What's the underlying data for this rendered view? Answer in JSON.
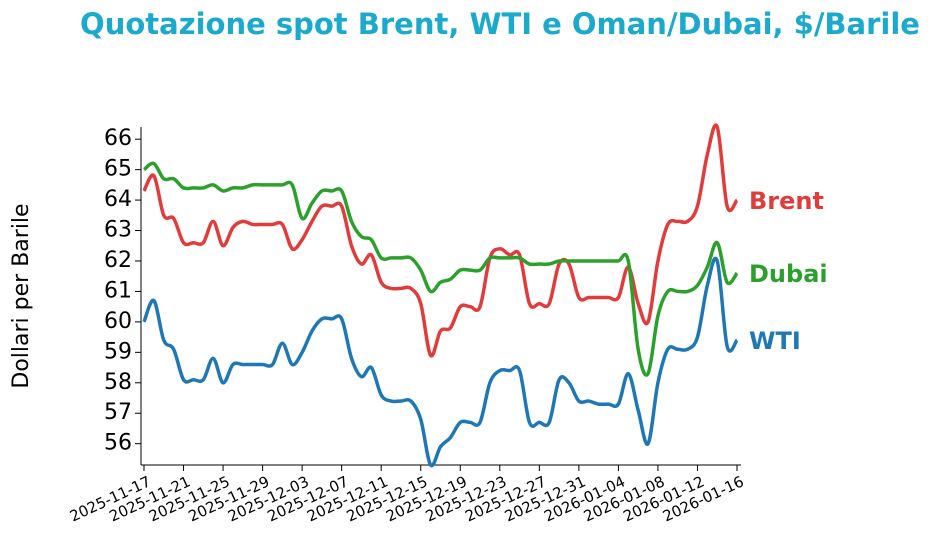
{
  "chart_data": {
    "type": "line",
    "title": "Quotazione spot Brent, WTI e Oman/Dubai, $/Barile",
    "y_label": "Dollari per Barile",
    "title_color": "#1ba9cc",
    "x": [
      "2025-11-17",
      "2025-11-18",
      "2025-11-19",
      "2025-11-20",
      "2025-11-21",
      "2025-11-22",
      "2025-11-23",
      "2025-11-24",
      "2025-11-25",
      "2025-11-26",
      "2025-11-27",
      "2025-11-28",
      "2025-11-29",
      "2025-11-30",
      "2025-12-01",
      "2025-12-02",
      "2025-12-03",
      "2025-12-04",
      "2025-12-05",
      "2025-12-06",
      "2025-12-07",
      "2025-12-08",
      "2025-12-09",
      "2025-12-10",
      "2025-12-11",
      "2025-12-12",
      "2025-12-13",
      "2025-12-14",
      "2025-12-15",
      "2025-12-16",
      "2025-12-17",
      "2025-12-18",
      "2025-12-19",
      "2025-12-20",
      "2025-12-21",
      "2025-12-22",
      "2025-12-23",
      "2025-12-24",
      "2025-12-25",
      "2025-12-26",
      "2025-12-27",
      "2025-12-28",
      "2025-12-29",
      "2025-12-30",
      "2025-12-31",
      "2026-01-01",
      "2026-01-02",
      "2026-01-03",
      "2026-01-04",
      "2026-01-05",
      "2026-01-06",
      "2026-01-07",
      "2026-01-08",
      "2026-01-09",
      "2026-01-10",
      "2026-01-11",
      "2026-01-12",
      "2026-01-13",
      "2026-01-14",
      "2026-01-15",
      "2026-01-16"
    ],
    "series": [
      {
        "name": "Brent",
        "color": "#e03c3c",
        "values": [
          64.3,
          64.8,
          63.5,
          63.4,
          62.6,
          62.6,
          62.6,
          63.3,
          62.5,
          63.1,
          63.3,
          63.2,
          63.2,
          63.2,
          63.2,
          62.4,
          62.7,
          63.3,
          63.8,
          63.8,
          63.8,
          62.5,
          61.9,
          62.2,
          61.3,
          61.1,
          61.1,
          61.1,
          60.6,
          58.9,
          59.7,
          59.8,
          60.5,
          60.5,
          60.5,
          62.1,
          62.4,
          62.2,
          62.2,
          60.6,
          60.6,
          60.6,
          61.9,
          61.9,
          60.8,
          60.8,
          60.8,
          60.8,
          60.8,
          61.8,
          60.6,
          60.0,
          62.0,
          63.2,
          63.3,
          63.3,
          63.8,
          65.5,
          66.4,
          63.8,
          64.0
        ]
      },
      {
        "name": "Dubai",
        "color": "#2ca02c",
        "values": [
          65.0,
          65.2,
          64.7,
          64.7,
          64.4,
          64.4,
          64.4,
          64.5,
          64.3,
          64.4,
          64.4,
          64.5,
          64.5,
          64.5,
          64.5,
          64.5,
          63.4,
          63.9,
          64.3,
          64.3,
          64.3,
          63.3,
          62.8,
          62.7,
          62.1,
          62.1,
          62.1,
          62.1,
          61.7,
          61.0,
          61.3,
          61.4,
          61.7,
          61.7,
          61.7,
          62.1,
          62.1,
          62.1,
          62.1,
          61.9,
          61.9,
          61.9,
          62.0,
          62.0,
          62.0,
          62.0,
          62.0,
          62.0,
          62.0,
          62.0,
          59.1,
          58.3,
          60.2,
          61.0,
          61.0,
          61.0,
          61.2,
          61.8,
          62.6,
          61.3,
          61.6
        ]
      },
      {
        "name": "WTI",
        "color": "#1f77b4",
        "values": [
          60.0,
          60.7,
          59.4,
          59.1,
          58.1,
          58.1,
          58.1,
          58.8,
          58.0,
          58.6,
          58.6,
          58.6,
          58.6,
          58.6,
          59.3,
          58.6,
          59.0,
          59.7,
          60.1,
          60.1,
          60.1,
          58.8,
          58.2,
          58.5,
          57.6,
          57.4,
          57.4,
          57.4,
          56.8,
          55.3,
          55.9,
          56.2,
          56.7,
          56.7,
          56.7,
          58.0,
          58.4,
          58.4,
          58.4,
          56.7,
          56.7,
          56.7,
          58.1,
          58.0,
          57.4,
          57.4,
          57.3,
          57.3,
          57.3,
          58.3,
          57.1,
          56.0,
          58.0,
          59.1,
          59.1,
          59.1,
          59.5,
          61.2,
          62.0,
          59.2,
          59.4
        ]
      }
    ],
    "xlim": [
      "2025-11-17",
      "2026-01-16"
    ],
    "xticks": [
      "2025-11-17",
      "2025-11-21",
      "2025-11-25",
      "2025-11-29",
      "2025-12-03",
      "2025-12-07",
      "2025-12-11",
      "2025-12-15",
      "2025-12-19",
      "2025-12-23",
      "2025-12-27",
      "2025-12-31",
      "2026-01-04",
      "2026-01-08",
      "2026-01-12",
      "2026-01-16"
    ],
    "ylim": [
      55.3,
      66.4
    ],
    "yticks": [
      56,
      57,
      58,
      59,
      60,
      61,
      62,
      63,
      64,
      65,
      66
    ],
    "grid": false
  }
}
